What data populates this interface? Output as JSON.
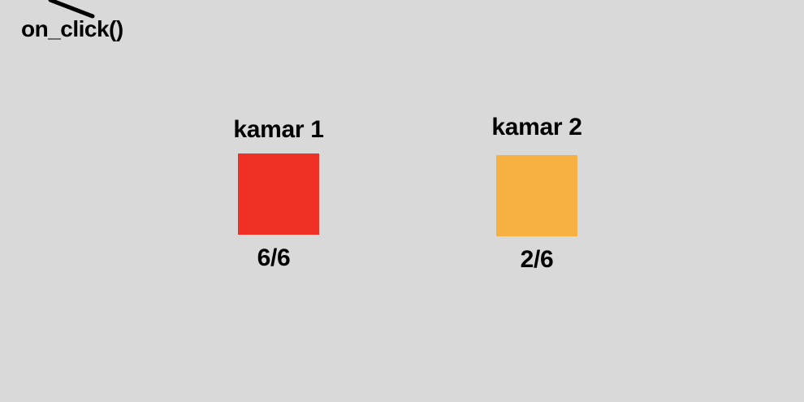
{
  "annotation": {
    "label": "on_click()"
  },
  "rooms": [
    {
      "title": "kamar 1",
      "count": "6/6",
      "color": "#ee3124"
    },
    {
      "title": "kamar 2",
      "count": "2/6",
      "color": "#f7b142"
    }
  ]
}
